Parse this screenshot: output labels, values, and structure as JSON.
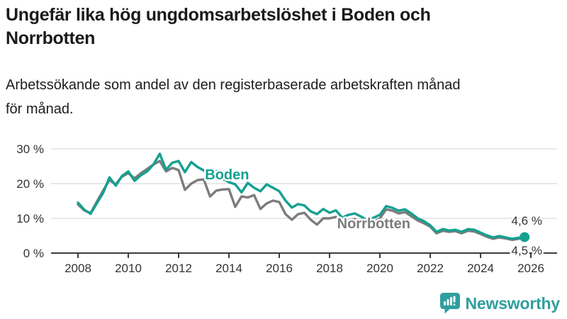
{
  "header": {
    "title_line1": "Ungefär lika hög ungdomsarbetslöshet i Boden och",
    "title_line2": "Norrbotten",
    "subtitle_line1": "Arbetssökande som andel av den registerbaserade arbetskraften månad",
    "subtitle_line2": "för månad."
  },
  "chart_data": {
    "type": "line",
    "title": "Ungefär lika hög ungdomsarbetslöshet i Boden och Norrbotten",
    "subtitle": "Arbetssökande som andel av den registerbaserade arbetskraften månad för månad.",
    "xlabel": "",
    "ylabel": "",
    "x": {
      "start": 2008,
      "step": 0.25,
      "unit": "year (quarterly)"
    },
    "xlim": [
      2007,
      2027
    ],
    "ylim": [
      0,
      32
    ],
    "grid": true,
    "legend": "inline-labels",
    "axis_color": "#3d3d3d",
    "grid_color": "#d9d9d9",
    "text_color": "#333333",
    "x_ticks": [
      2008,
      2010,
      2012,
      2014,
      2016,
      2018,
      2020,
      2022,
      2024,
      2026
    ],
    "y_ticks": [
      {
        "value": 0,
        "label": "0 %"
      },
      {
        "value": 10,
        "label": "10 %"
      },
      {
        "value": 20,
        "label": "20 %"
      },
      {
        "value": 30,
        "label": "30 %"
      }
    ],
    "series": [
      {
        "name": "Norrbotten",
        "color": "#7c7c7c",
        "label_pos": {
          "year": 2018.3,
          "pct": 7.1
        },
        "end_label": {
          "text": "4,5 %",
          "year": 2026.45,
          "pct": -0.4
        },
        "end_dot": false,
        "values": [
          14.0,
          12.3,
          11.5,
          14.8,
          18.0,
          21.0,
          19.8,
          22.0,
          23.0,
          21.5,
          23.0,
          24.2,
          25.5,
          26.5,
          23.5,
          24.5,
          23.9,
          18.2,
          20.0,
          21.0,
          21.2,
          16.3,
          18.0,
          18.3,
          18.4,
          13.3,
          16.3,
          16.0,
          16.7,
          12.7,
          14.3,
          15.1,
          14.7,
          11.2,
          9.6,
          11.2,
          11.6,
          9.6,
          8.2,
          10.0,
          10.0,
          10.4,
          8.8,
          9.4,
          9.8,
          9.2,
          8.2,
          9.0,
          10.0,
          12.6,
          12.2,
          11.4,
          11.8,
          10.6,
          9.4,
          8.6,
          7.6,
          5.7,
          6.4,
          6.1,
          6.3,
          5.7,
          6.4,
          6.2,
          5.5,
          4.7,
          4.1,
          4.5,
          4.2,
          3.8,
          4.1,
          4.5
        ]
      },
      {
        "name": "Boden",
        "color": "#14a090",
        "label_pos": {
          "year": 2013.05,
          "pct": 21.2
        },
        "end_label": {
          "text": "4,6 %",
          "year": 2026.45,
          "pct": 8.2
        },
        "end_dot": true,
        "values": [
          14.5,
          12.5,
          11.3,
          14.3,
          17.3,
          21.8,
          19.4,
          22.2,
          23.5,
          20.8,
          22.4,
          23.5,
          25.5,
          28.6,
          24.0,
          26.0,
          26.5,
          23.3,
          26.2,
          24.8,
          23.8,
          22.3,
          23.6,
          21.4,
          20.4,
          19.8,
          17.5,
          20.2,
          18.8,
          17.8,
          19.8,
          18.8,
          17.8,
          15.1,
          13.1,
          14.1,
          13.7,
          12.0,
          11.2,
          12.7,
          11.6,
          12.3,
          10.2,
          11.0,
          11.4,
          10.5,
          9.4,
          10.2,
          11.0,
          13.5,
          13.0,
          12.2,
          12.6,
          11.4,
          10.0,
          9.2,
          8.0,
          6.1,
          6.9,
          6.5,
          6.7,
          6.1,
          6.9,
          6.7,
          5.9,
          5.1,
          4.5,
          4.9,
          4.5,
          4.1,
          4.4,
          4.6
        ]
      }
    ]
  },
  "footer": {
    "brand": "Newsworthy",
    "brand_color": "#2f9e9e"
  }
}
